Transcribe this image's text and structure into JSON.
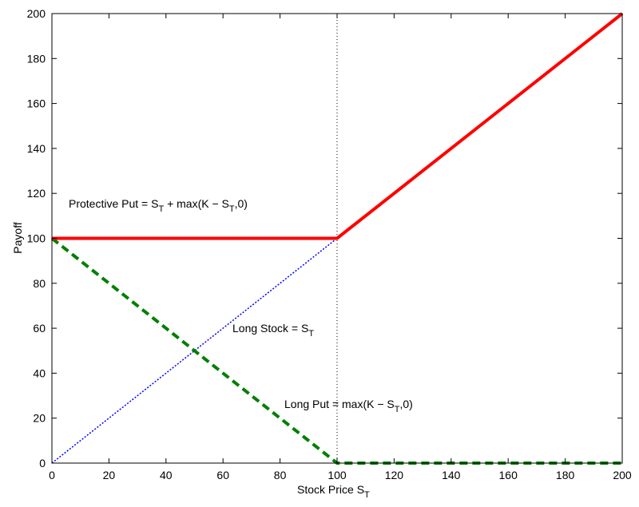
{
  "chart_data": {
    "type": "line",
    "title": "",
    "xlabel": "Stock Price S",
    "xlabel_sub": "T",
    "ylabel": "Payoff",
    "xlim": [
      0,
      200
    ],
    "ylim": [
      0,
      200
    ],
    "xticks": [
      0,
      20,
      40,
      60,
      80,
      100,
      120,
      140,
      160,
      180,
      200
    ],
    "yticks": [
      0,
      20,
      40,
      60,
      80,
      100,
      120,
      140,
      160,
      180,
      200
    ],
    "grid": false,
    "strike_marker_x": 100,
    "series": [
      {
        "name": "Protective Put",
        "color": "#ff0000",
        "style": "solid",
        "x": [
          0,
          100,
          200
        ],
        "y": [
          100,
          100,
          200
        ]
      },
      {
        "name": "Long Stock",
        "color": "#0000ff",
        "style": "dotted",
        "x": [
          0,
          100
        ],
        "y": [
          0,
          100
        ]
      },
      {
        "name": "Long Put",
        "color": "#007f00",
        "style": "dashed",
        "x": [
          0,
          100,
          200
        ],
        "y": [
          100,
          0,
          0
        ]
      }
    ],
    "annotations": [
      {
        "id": "protective",
        "pre": "Protective Put = S",
        "sub1": "T",
        "mid": " + max(K − S",
        "sub2": "T",
        "post": ",0)"
      },
      {
        "id": "stock",
        "pre": "Long Stock = S",
        "sub1": "T"
      },
      {
        "id": "put",
        "pre": "Long Put = max(K − S",
        "sub1": "T",
        "post": ",0)"
      }
    ]
  }
}
